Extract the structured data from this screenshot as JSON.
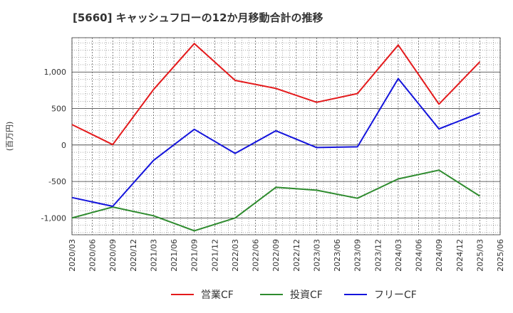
{
  "chart_data": {
    "type": "line",
    "title": "[5660]  キャッシュフローの12か月移動合計の推移",
    "ylabel": "(百万円)",
    "xlabel": "",
    "x": [
      "2020/03",
      "2020/06",
      "2020/09",
      "2020/12",
      "2021/03",
      "2021/06",
      "2021/09",
      "2021/12",
      "2022/03",
      "2022/06",
      "2022/09",
      "2022/12",
      "2023/03",
      "2023/06",
      "2023/09",
      "2023/12",
      "2024/03",
      "2024/06",
      "2024/09",
      "2024/12",
      "2025/03",
      "2025/06"
    ],
    "ylim": [
      -1230,
      1470
    ],
    "yticks": [
      -1000,
      -500,
      0,
      500,
      1000
    ],
    "ytick_labels": [
      "-1,000",
      "-500",
      "0",
      "500",
      "1,000"
    ],
    "grid": true,
    "legend_position": "bottom",
    "series": [
      {
        "name": "営業CF",
        "color": "#e41a1c",
        "points": [
          [
            "2020/03",
            280
          ],
          [
            "2020/09",
            5
          ],
          [
            "2021/03",
            760
          ],
          [
            "2021/09",
            1390
          ],
          [
            "2022/03",
            885
          ],
          [
            "2022/09",
            775
          ],
          [
            "2023/03",
            585
          ],
          [
            "2023/09",
            705
          ],
          [
            "2024/03",
            1370
          ],
          [
            "2024/09",
            560
          ],
          [
            "2025/03",
            1140
          ]
        ]
      },
      {
        "name": "投資CF",
        "color": "#2e8b2e",
        "points": [
          [
            "2020/03",
            -1000
          ],
          [
            "2020/09",
            -850
          ],
          [
            "2021/03",
            -970
          ],
          [
            "2021/09",
            -1175
          ],
          [
            "2022/03",
            -1000
          ],
          [
            "2022/09",
            -580
          ],
          [
            "2023/03",
            -620
          ],
          [
            "2023/09",
            -730
          ],
          [
            "2024/03",
            -465
          ],
          [
            "2024/09",
            -345
          ],
          [
            "2025/03",
            -700
          ]
        ]
      },
      {
        "name": "フリーCF",
        "color": "#1414dc",
        "points": [
          [
            "2020/03",
            -720
          ],
          [
            "2020/09",
            -840
          ],
          [
            "2021/03",
            -210
          ],
          [
            "2021/09",
            215
          ],
          [
            "2022/03",
            -115
          ],
          [
            "2022/09",
            195
          ],
          [
            "2023/03",
            -35
          ],
          [
            "2023/09",
            -25
          ],
          [
            "2024/03",
            910
          ],
          [
            "2024/09",
            220
          ],
          [
            "2025/03",
            440
          ]
        ]
      }
    ]
  }
}
